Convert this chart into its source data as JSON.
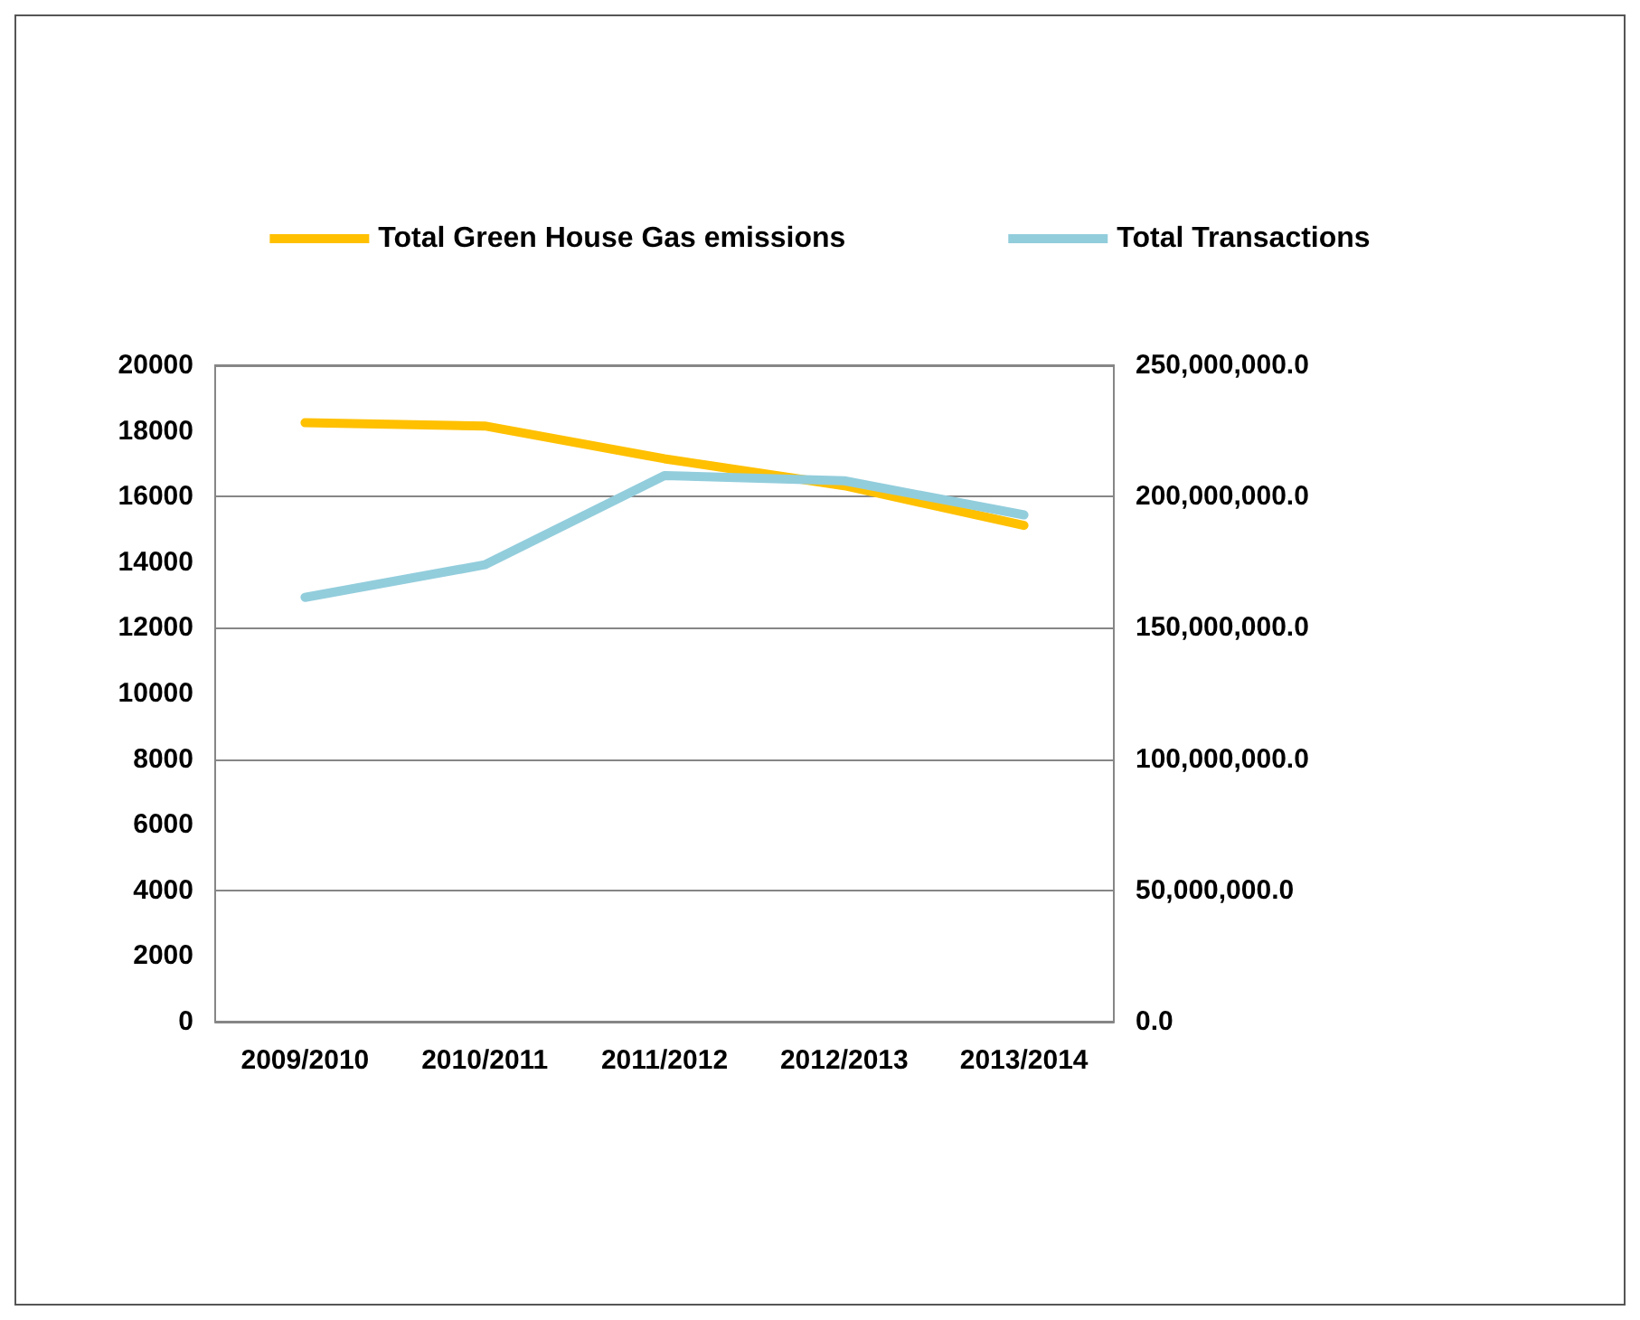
{
  "chart_data": {
    "type": "line",
    "categories": [
      "2009/2010",
      "2010/2011",
      "2011/2012",
      "2012/2013",
      "2013/2014"
    ],
    "series": [
      {
        "name": "Total Green House Gas emissions",
        "color": "#ffc000",
        "values": [
          18250,
          18150,
          17150,
          16330,
          15120
        ]
      },
      {
        "name": "Total Transactions",
        "color": "#92cddc",
        "axis": "y2",
        "values": [
          161600000,
          174000000,
          208000000,
          206000000,
          193000000
        ]
      }
    ],
    "ylim": [
      0,
      20000
    ],
    "yticks": [
      0,
      2000,
      4000,
      6000,
      8000,
      10000,
      12000,
      14000,
      16000,
      18000,
      20000
    ],
    "y2lim": [
      0,
      250000000
    ],
    "y2ticks": [
      {
        "value": 0,
        "label": "0.0"
      },
      {
        "value": 50000000,
        "label": "50,000,000.0"
      },
      {
        "value": 100000000,
        "label": "100,000,000.0"
      },
      {
        "value": 150000000,
        "label": "150,000,000.0"
      },
      {
        "value": 200000000,
        "label": "200,000,000.0"
      },
      {
        "value": 250000000,
        "label": "250,000,000.0"
      }
    ],
    "grid": "y",
    "legend": "top",
    "marker": "none",
    "line_style": "solid"
  }
}
